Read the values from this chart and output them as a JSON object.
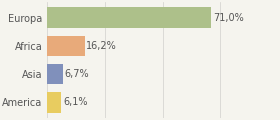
{
  "categories": [
    "Europa",
    "Africa",
    "Asia",
    "America"
  ],
  "values": [
    71.0,
    16.2,
    6.7,
    6.1
  ],
  "bar_colors": [
    "#adc08a",
    "#e8aa7a",
    "#8090bb",
    "#e8cc60"
  ],
  "xlim": [
    0,
    100
  ],
  "background_color": "#f5f4ee",
  "bar_height": 0.72,
  "fontsize_labels": 7.0,
  "fontsize_values": 7.0,
  "text_color": "#555555",
  "grid_color": "#d0d0cc",
  "grid_positions": [
    0,
    25,
    50,
    75,
    100
  ]
}
